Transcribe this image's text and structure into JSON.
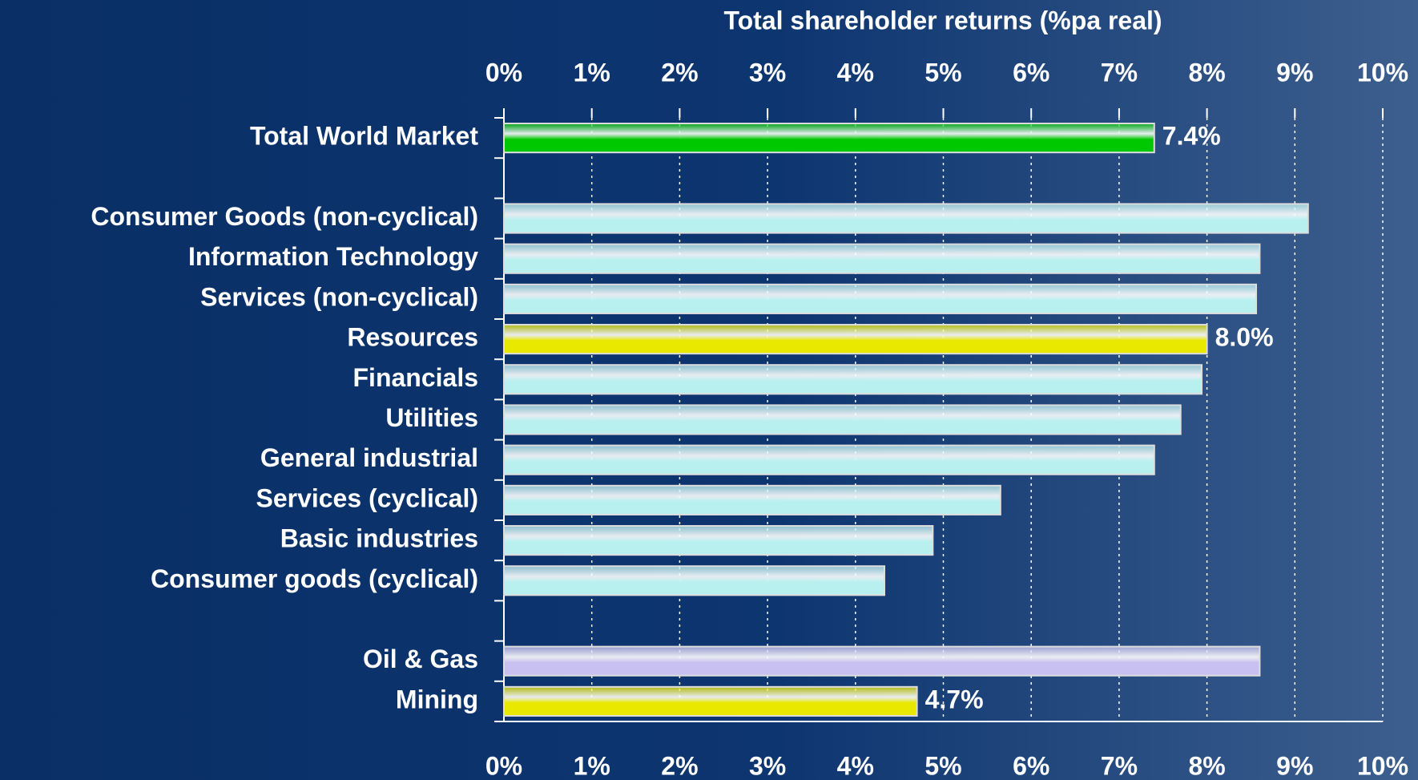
{
  "chart_data": {
    "type": "hbar",
    "title": "Total shareholder returns (%pa real)",
    "categories": [
      "Total World Market",
      null,
      "Consumer Goods (non-cyclical)",
      "Information Technology",
      "Services (non-cyclical)",
      "Resources",
      "Financials",
      "Utilities",
      "General industrial",
      "Services (cyclical)",
      "Basic industries",
      "Consumer goods (cyclical)",
      null,
      "Oil & Gas",
      "Mining"
    ],
    "values": [
      7.4,
      null,
      9.15,
      8.6,
      8.56,
      8.0,
      7.94,
      7.7,
      7.4,
      5.65,
      4.88,
      4.33,
      null,
      8.6,
      4.7
    ],
    "value_labels": [
      "7.4%",
      null,
      null,
      null,
      null,
      "8.0%",
      null,
      null,
      null,
      null,
      null,
      null,
      null,
      null,
      "4.7%"
    ],
    "colors": [
      "#00c800",
      null,
      "#b8f0f0",
      "#b8f0f0",
      "#b8f0f0",
      "#e8e800",
      "#b8f0f0",
      "#b8f0f0",
      "#b8f0f0",
      "#b8f0f0",
      "#b8f0f0",
      "#b8f0f0",
      null,
      "#c8c0f0",
      "#e8e800"
    ],
    "xlim": [
      0,
      10
    ],
    "xticks": [
      {
        "value": 0,
        "label": "0%"
      },
      {
        "value": 1,
        "label": "1%"
      },
      {
        "value": 2,
        "label": "2%"
      },
      {
        "value": 3,
        "label": "3%"
      },
      {
        "value": 4,
        "label": "4%"
      },
      {
        "value": 5,
        "label": "5%"
      },
      {
        "value": 6,
        "label": "6%"
      },
      {
        "value": 7,
        "label": "7%"
      },
      {
        "value": 8,
        "label": "8%"
      },
      {
        "value": 9,
        "label": "9%"
      },
      {
        "value": 10,
        "label": "10%"
      }
    ],
    "grid": true
  }
}
